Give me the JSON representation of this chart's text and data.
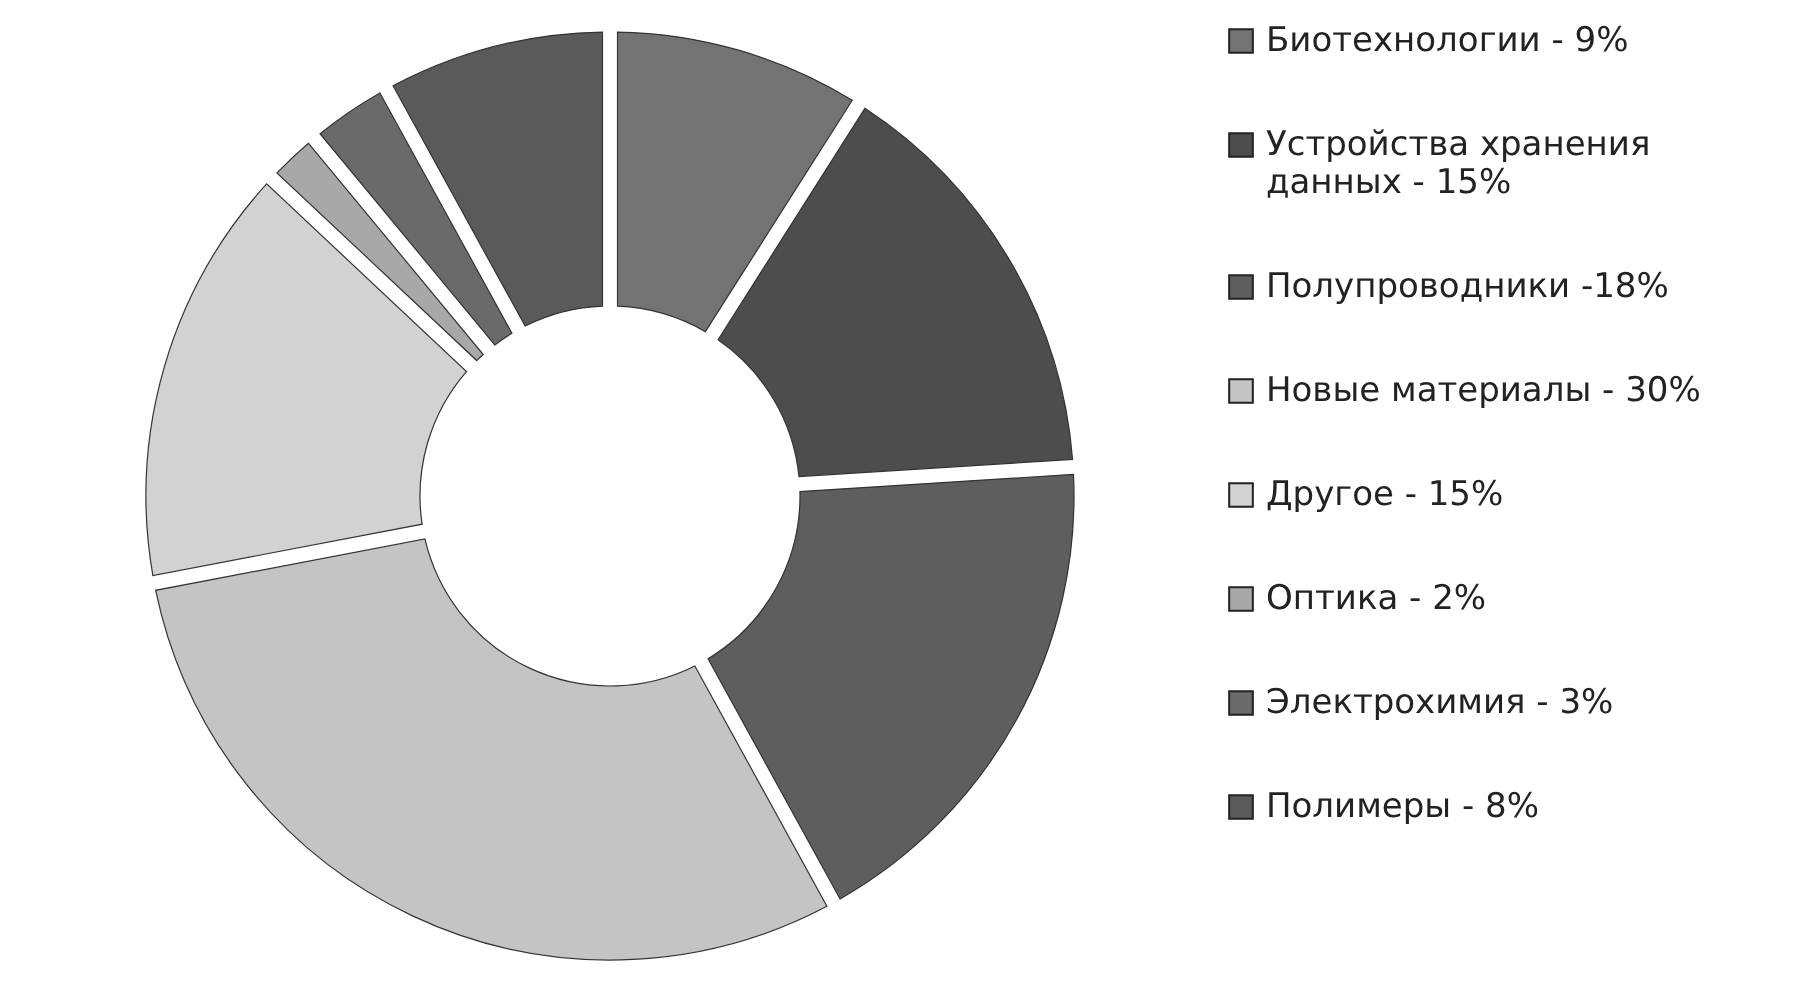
{
  "chart_data": {
    "type": "donut",
    "categories": [
      "Биотехнологии - 9%",
      "Устройства хранения данных - 15%",
      "Полупроводники -18%",
      "Новые материалы - 30%",
      "Другое - 15%",
      "Оптика - 2%",
      "Электрохимия - 3%",
      "Полимеры - 8%"
    ],
    "values": [
      9,
      15,
      18,
      30,
      15,
      2,
      3,
      8
    ],
    "colors": [
      "#737373",
      "#4d4d4d",
      "#5e5e5e",
      "#c4c4c4",
      "#d2d2d2",
      "#a8a8a8",
      "#6a6a6a",
      "#5a5a5a"
    ],
    "legend": "right"
  }
}
